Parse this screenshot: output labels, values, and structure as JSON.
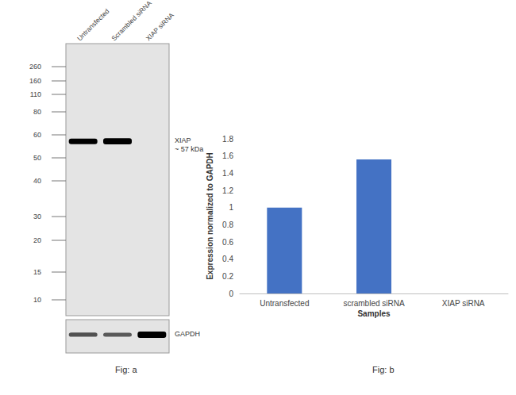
{
  "chart_data": {
    "type": "bar",
    "caption": "Fig: b",
    "x_label": "Samples",
    "y_label": "Expression normalized to GAPDH",
    "categories": [
      "Untransfected",
      "scrambled siRNA",
      "XIAP siRNA"
    ],
    "values": [
      1,
      1.56,
      0
    ],
    "color": "#4472c4",
    "ylim": [
      0,
      1.8
    ],
    "yticks": [
      0,
      0.2,
      0.4,
      0.6,
      0.8,
      1,
      1.2,
      1.4,
      1.6,
      1.8
    ],
    "grid": false
  },
  "blot": {
    "caption": "Fig: a",
    "lanes": [
      "Untransfected",
      "Scrambled siRNA",
      "XIAP siRNA"
    ],
    "markers": [
      260,
      160,
      110,
      80,
      60,
      50,
      40,
      30,
      20,
      15,
      10
    ],
    "bands": [
      {
        "label": "XIAP",
        "size_label": "~ 57 kDa",
        "kda": 57,
        "intensity": [
          1,
          1.1,
          0
        ]
      },
      {
        "label": "GAPDH",
        "intensity": [
          0.45,
          0.4,
          1
        ]
      }
    ]
  }
}
